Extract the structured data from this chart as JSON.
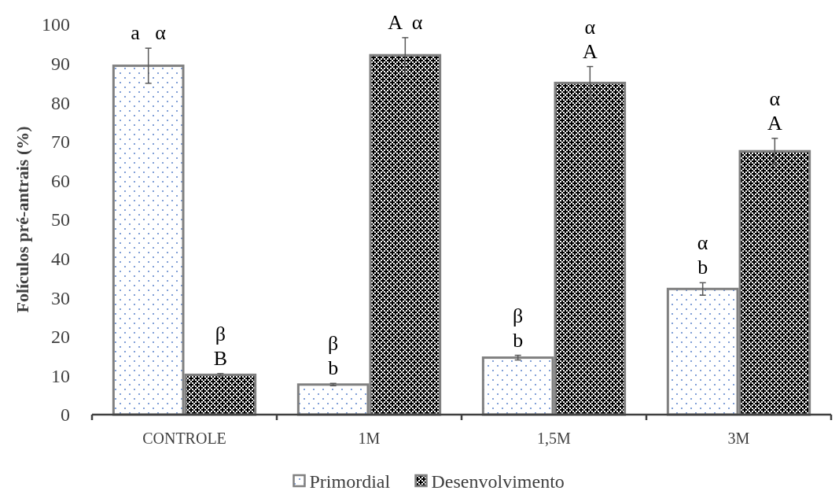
{
  "chart_data": {
    "type": "bar",
    "ylabel": "Folículos pré-antrais (%)",
    "categories": [
      "CONTROLE",
      "1M",
      "1,5M",
      "3M"
    ],
    "series": [
      {
        "name": "Primordial",
        "color": "#808080",
        "values": [
          89.4,
          7.7,
          14.6,
          32.2
        ],
        "errors": [
          4.5,
          0.3,
          0.6,
          1.6
        ]
      },
      {
        "name": "Desenvolvimento",
        "color": "#808080",
        "values": [
          10.2,
          92.1,
          85.0,
          67.5
        ],
        "errors": [
          0.3,
          4.5,
          4.2,
          3.3
        ]
      }
    ],
    "ylim": [
      0,
      100
    ],
    "yticks": [
      0,
      10,
      20,
      30,
      40,
      50,
      60,
      70,
      80,
      90,
      100
    ],
    "grid": false,
    "legend": "bottom",
    "annotations": [
      {
        "text": "a   α",
        "x": "CONTROLE",
        "y": 89.4
      },
      {
        "text": "B",
        "x": "CONTROLE",
        "y": 10.2
      },
      {
        "text": "β",
        "x": "CONTROLE",
        "y": 10.2
      },
      {
        "text": "b",
        "x": "1M",
        "y": 7.7
      },
      {
        "text": "β",
        "x": "1M",
        "y": 7.7
      },
      {
        "text": "A  α",
        "x": "1M",
        "y": 92.1
      },
      {
        "text": "b",
        "x": "1,5M",
        "y": 14.6
      },
      {
        "text": "β",
        "x": "1,5M",
        "y": 14.6
      },
      {
        "text": "A",
        "x": "1,5M",
        "y": 85.0
      },
      {
        "text": "α",
        "x": "1,5M",
        "y": 85.0
      },
      {
        "text": "b",
        "x": "3M",
        "y": 32.2
      },
      {
        "text": "α",
        "x": "3M",
        "y": 32.2
      },
      {
        "text": "A",
        "x": "3M",
        "y": 67.5
      },
      {
        "text": "α",
        "x": "3M",
        "y": 67.5
      }
    ]
  }
}
